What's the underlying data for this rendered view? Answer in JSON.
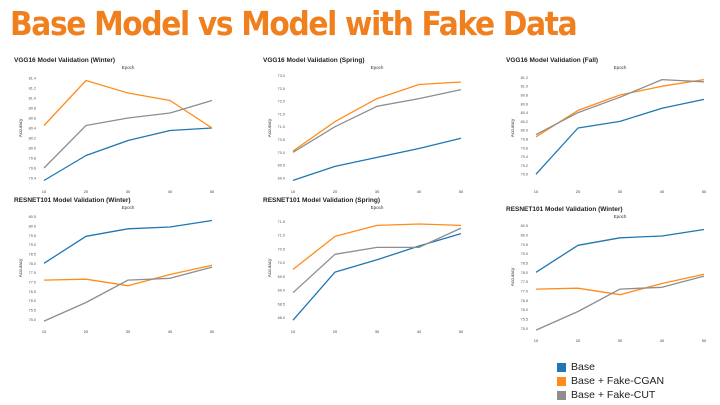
{
  "title": "Base Model vs Model with Fake Data",
  "colors": {
    "base": "#1f77b4",
    "cgan": "#ff8c1a",
    "cut": "#8e8e8e"
  },
  "legend": [
    {
      "label": "Base",
      "color": "#1f77b4"
    },
    {
      "label": "Base + Fake-CGAN",
      "color": "#ff8c1a"
    },
    {
      "label": "Base + Fake-CUT",
      "color": "#8e8e8e"
    }
  ],
  "chart_data": [
    {
      "type": "line",
      "title": "VGG16 Model Validation (Winter)",
      "xlabel": "Epoch",
      "ylabel": "Accuracy",
      "x": [
        10,
        20,
        30,
        40,
        50
      ],
      "ylim": [
        79.3,
        81.5
      ],
      "yticks": [
        "79.4",
        "79.6",
        "79.8",
        "80.0",
        "80.2",
        "80.4",
        "80.6",
        "80.8",
        "81.0",
        "81.2",
        "81.4"
      ],
      "series": [
        {
          "name": "Base",
          "values": [
            79.35,
            79.85,
            80.15,
            80.35,
            80.4
          ]
        },
        {
          "name": "Base + Fake-CGAN",
          "values": [
            80.45,
            81.35,
            81.1,
            80.95,
            80.4
          ]
        },
        {
          "name": "Base + Fake-CUT",
          "values": [
            79.6,
            80.45,
            80.6,
            80.7,
            80.95
          ]
        }
      ]
    },
    {
      "type": "line",
      "title": "VGG16 Model Validation (Spring)",
      "xlabel": "Epoch",
      "ylabel": "Accuracy",
      "x": [
        10,
        20,
        30,
        40,
        50
      ],
      "ylim": [
        68.8,
        73.1
      ],
      "yticks": [
        "69.0",
        "69.5",
        "70.0",
        "70.5",
        "71.0",
        "71.5",
        "72.0",
        "72.5",
        "73.0"
      ],
      "series": [
        {
          "name": "Base",
          "values": [
            68.9,
            69.45,
            69.8,
            70.15,
            70.55
          ]
        },
        {
          "name": "Base + Fake-CGAN",
          "values": [
            70.05,
            71.2,
            72.1,
            72.65,
            72.75
          ]
        },
        {
          "name": "Base + Fake-CUT",
          "values": [
            70.0,
            71.0,
            71.8,
            72.1,
            72.45
          ]
        }
      ]
    },
    {
      "type": "line",
      "title": "VGG16 Model Validation (Fall)",
      "xlabel": "Epoch",
      "ylabel": "Accuracy",
      "x": [
        10,
        20,
        30,
        40,
        50
      ],
      "ylim": [
        78.8,
        81.3
      ],
      "yticks": [
        "79.0",
        "79.2",
        "79.4",
        "79.6",
        "79.8",
        "80.0",
        "80.2",
        "80.4",
        "80.6",
        "80.8",
        "81.0",
        "81.2"
      ],
      "series": [
        {
          "name": "Base",
          "values": [
            79.0,
            80.05,
            80.2,
            80.5,
            80.7
          ]
        },
        {
          "name": "Base + Fake-CGAN",
          "values": [
            79.85,
            80.45,
            80.8,
            81.0,
            81.15
          ]
        },
        {
          "name": "Base + Fake-CUT",
          "values": [
            79.9,
            80.4,
            80.75,
            81.15,
            81.1
          ]
        }
      ]
    },
    {
      "type": "line",
      "title": "RESNET101 Model Validation (Winter)",
      "xlabel": "Epoch",
      "ylabel": "Accuracy",
      "x": [
        10,
        20,
        30,
        40,
        50
      ],
      "ylim": [
        74.8,
        80.7
      ],
      "yticks": [
        "75.0",
        "75.5",
        "76.0",
        "76.5",
        "77.0",
        "77.5",
        "78.0",
        "78.5",
        "79.0",
        "79.5",
        "80.0",
        "80.5"
      ],
      "series": [
        {
          "name": "Base",
          "values": [
            78.0,
            79.45,
            79.85,
            79.95,
            80.3
          ]
        },
        {
          "name": "Base + Fake-CGAN",
          "values": [
            77.1,
            77.15,
            76.8,
            77.4,
            77.9
          ]
        },
        {
          "name": "Base + Fake-CUT",
          "values": [
            74.9,
            75.9,
            77.1,
            77.2,
            77.8
          ]
        }
      ]
    },
    {
      "type": "line",
      "title": "RESNET101 Model Validation (Spring)",
      "xlabel": "Epoch",
      "ylabel": "Accuracy",
      "x": [
        10,
        20,
        30,
        40,
        50
      ],
      "ylim": [
        67.8,
        71.8
      ],
      "yticks": [
        "68.0",
        "68.5",
        "69.0",
        "69.5",
        "70.0",
        "70.5",
        "71.0",
        "71.5"
      ],
      "series": [
        {
          "name": "Base",
          "values": [
            67.9,
            69.65,
            70.1,
            70.6,
            71.05
          ]
        },
        {
          "name": "Base + Fake-CGAN",
          "values": [
            69.75,
            70.95,
            71.35,
            71.4,
            71.35
          ]
        },
        {
          "name": "Base + Fake-CUT",
          "values": [
            68.9,
            70.3,
            70.55,
            70.55,
            71.25
          ]
        }
      ]
    },
    {
      "type": "line",
      "title": "RESNET101 Model Validation (Winter)",
      "xlabel": "Epoch",
      "ylabel": "Accuracy",
      "x": [
        10,
        20,
        30,
        40,
        50
      ],
      "ylim": [
        74.8,
        80.7
      ],
      "yticks": [
        "75.0",
        "75.5",
        "76.0",
        "76.5",
        "77.0",
        "77.5",
        "78.0",
        "78.5",
        "79.0",
        "79.5",
        "80.0",
        "80.5"
      ],
      "series": [
        {
          "name": "Base",
          "values": [
            78.0,
            79.45,
            79.85,
            79.95,
            80.3
          ]
        },
        {
          "name": "Base + Fake-CGAN",
          "values": [
            77.1,
            77.15,
            76.8,
            77.4,
            77.9
          ]
        },
        {
          "name": "Base + Fake-CUT",
          "values": [
            74.9,
            75.9,
            77.1,
            77.2,
            77.8
          ]
        }
      ]
    }
  ]
}
